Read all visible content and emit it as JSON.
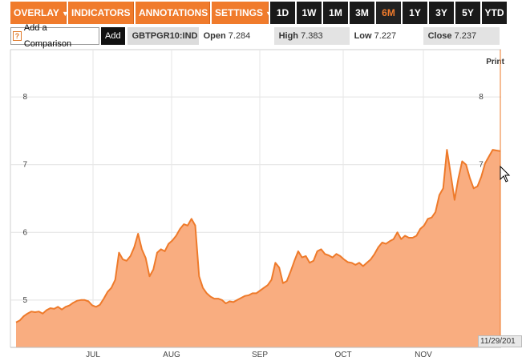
{
  "toolbar": {
    "menus": [
      {
        "label": "OVERLAY"
      },
      {
        "label": "INDICATORS"
      },
      {
        "label": "ANNOTATIONS"
      },
      {
        "label": "SETTINGS"
      }
    ],
    "ranges": [
      "1D",
      "1W",
      "1M",
      "3M",
      "6M",
      "1Y",
      "3Y",
      "5Y",
      "YTD"
    ],
    "active_range": "6M"
  },
  "compare": {
    "label": "Add a Comparison",
    "icon": "?",
    "add_label": "Add"
  },
  "quote": {
    "ticker": "GBTPGR10:IND",
    "open_label": "Open",
    "open_value": "7.284",
    "high_label": "High",
    "high_value": "7.383",
    "low_label": "Low",
    "low_value": "7.227",
    "close_label": "Close",
    "close_value": "7.237"
  },
  "print_label": "Print",
  "date_readout": "11/29/201",
  "colors": {
    "accent": "#f07b2c",
    "fill": "#f9ad80",
    "line": "#ee7a2a"
  },
  "chart_data": {
    "type": "area",
    "x_tick_labels": [
      "JUL",
      "AUG",
      "SEP",
      "OCT",
      "NOV"
    ],
    "y_tick_labels": [
      "5",
      "6",
      "7",
      "8"
    ],
    "ylim": [
      4.3,
      8.7
    ],
    "grid": true,
    "values": [
      4.67,
      4.7,
      4.76,
      4.8,
      4.83,
      4.82,
      4.83,
      4.8,
      4.85,
      4.88,
      4.87,
      4.9,
      4.86,
      4.9,
      4.92,
      4.96,
      4.99,
      5.0,
      5.0,
      4.98,
      4.92,
      4.9,
      4.93,
      5.02,
      5.12,
      5.18,
      5.3,
      5.7,
      5.6,
      5.58,
      5.65,
      5.78,
      5.98,
      5.75,
      5.62,
      5.35,
      5.45,
      5.7,
      5.75,
      5.72,
      5.83,
      5.88,
      5.95,
      6.05,
      6.12,
      6.1,
      6.2,
      6.1,
      5.35,
      5.18,
      5.1,
      5.05,
      5.02,
      5.02,
      5.0,
      4.95,
      4.98,
      4.97,
      5.0,
      5.03,
      5.06,
      5.07,
      5.1,
      5.1,
      5.14,
      5.18,
      5.22,
      5.3,
      5.55,
      5.48,
      5.25,
      5.28,
      5.42,
      5.58,
      5.72,
      5.63,
      5.65,
      5.55,
      5.58,
      5.72,
      5.75,
      5.68,
      5.66,
      5.63,
      5.68,
      5.65,
      5.6,
      5.56,
      5.55,
      5.52,
      5.55,
      5.5,
      5.55,
      5.6,
      5.68,
      5.78,
      5.85,
      5.83,
      5.87,
      5.9,
      6.0,
      5.9,
      5.95,
      5.92,
      5.92,
      5.95,
      6.05,
      6.1,
      6.2,
      6.22,
      6.3,
      6.55,
      6.65,
      7.22,
      6.85,
      6.48,
      6.8,
      7.05,
      7.0,
      6.8,
      6.65,
      6.68,
      6.82,
      7.02,
      7.12,
      7.22,
      7.21,
      7.2
    ]
  }
}
